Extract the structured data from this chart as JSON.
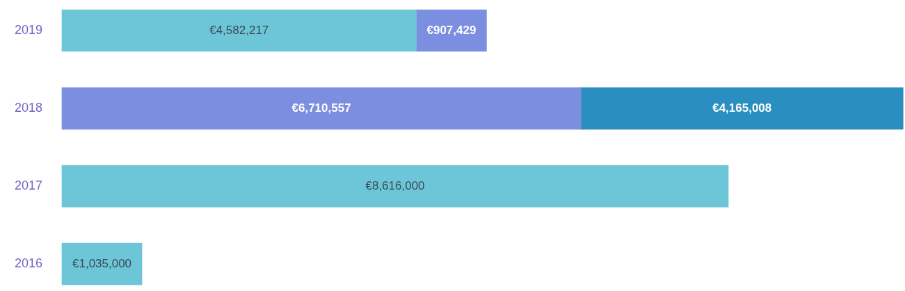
{
  "chart_data": {
    "type": "bar",
    "orientation": "horizontal",
    "stacked": true,
    "categories": [
      "2019",
      "2018",
      "2017",
      "2016"
    ],
    "xlim": [
      0,
      10900000
    ],
    "tick_labels": "y",
    "grid": false,
    "legend": false,
    "series": [
      {
        "colors": [
          "#6cc6d8",
          "#7b8ee0",
          "#6cc6d8",
          "#6cc6d8"
        ],
        "values": [
          4582217,
          6710557,
          8616000,
          1035000
        ],
        "value_labels": [
          "€4,582,217",
          "€6,710,557",
          "€8,616,000",
          "€1,035,000"
        ]
      },
      {
        "colors": [
          "#7b8ee0",
          "#2a8fc0",
          null,
          null
        ],
        "values": [
          907429,
          4165008,
          null,
          null
        ],
        "value_labels": [
          "€907,429",
          "€4,165,008",
          null,
          null
        ]
      }
    ]
  }
}
